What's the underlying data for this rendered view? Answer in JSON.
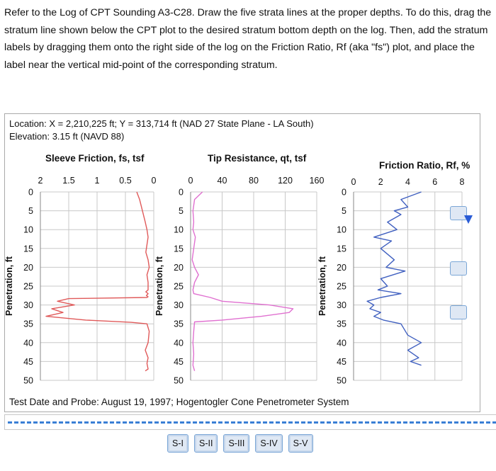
{
  "instructions": "Refer to the Log of CPT Sounding A3-C28.  Draw the five strata lines at the proper depths.  To do this, drag the stratum line shown below the CPT plot to the desired stratum bottom depth on the log.  Then, add the stratum labels by dragging them onto the right side of the log on the Friction Ratio, Rf (aka \"fs\") plot, and place the label near the vertical mid-point of the corresponding stratum.",
  "log": {
    "location": "Location:  X = 2,210,225 ft; Y = 313,714 ft (NAD 27 State Plane - LA South)",
    "elevation": "Elevation: 3.15 ft (NAVD 88)",
    "test_info": "Test Date and Probe:  August 19, 1997; Hogentogler Cone Penetrometer System",
    "depth_axis_label": "Penetration, ft",
    "depth_ticks": [
      "0",
      "5",
      "10",
      "15",
      "20",
      "25",
      "30",
      "35",
      "40",
      "45",
      "50"
    ],
    "plots": [
      {
        "title": "Sleeve Friction, fs, tsf",
        "x_ticks": [
          "2",
          "1.5",
          "1",
          "0.5",
          "0"
        ]
      },
      {
        "title": "Tip Resistance, qt, tsf",
        "x_ticks": [
          "0",
          "40",
          "80",
          "120",
          "160"
        ]
      },
      {
        "title": "Friction Ratio, Rf, %",
        "x_ticks": [
          "0",
          "2",
          "4",
          "6",
          "8"
        ]
      }
    ],
    "colors": {
      "fs": "#e05a5a",
      "qt": "#e070d0",
      "rf": "#4060c0",
      "stratum_line": "#3a7fd5"
    }
  },
  "strata_labels": [
    "S-I",
    "S-II",
    "S-III",
    "S-IV",
    "S-V"
  ],
  "chart_data": [
    {
      "type": "line",
      "title": "Sleeve Friction, fs, tsf",
      "xlim": [
        2,
        0
      ],
      "ylim": [
        0,
        50
      ],
      "x": [
        0.3,
        0.25,
        0.2,
        0.15,
        0.12,
        0.1,
        0.12,
        0.14,
        0.1,
        0.08,
        0.12,
        0.1,
        0.1,
        0.14,
        0.1,
        0.13,
        0.1,
        0.12,
        1.5,
        1.7,
        1.4,
        1.8,
        1.6,
        1.9,
        1.2,
        0.4,
        0.12,
        0.08,
        0.1,
        0.15,
        0.1,
        0.12,
        0.1,
        0.15
      ],
      "y": [
        0,
        2,
        5,
        8,
        10,
        12,
        14,
        16,
        18,
        20,
        22,
        24,
        26,
        26.5,
        27,
        27.5,
        27.8,
        28,
        28.3,
        29,
        30,
        31,
        32,
        33,
        34,
        34.6,
        35,
        37,
        40,
        42,
        44,
        45.5,
        47,
        47.5
      ]
    },
    {
      "type": "line",
      "title": "Tip Resistance, qt, tsf",
      "xlim": [
        0,
        160
      ],
      "ylim": [
        0,
        50
      ],
      "x": [
        15,
        5,
        3,
        4,
        3,
        6,
        4,
        2,
        5,
        10,
        5,
        3,
        4,
        25,
        40,
        100,
        130,
        125,
        90,
        40,
        5,
        4,
        3,
        4,
        3,
        5
      ],
      "y": [
        0,
        2,
        5,
        8,
        10,
        12,
        15,
        18,
        20,
        22,
        24,
        26,
        27,
        28,
        29,
        30,
        31,
        32,
        33,
        34,
        34.5,
        37,
        40,
        43,
        46,
        47.5
      ]
    },
    {
      "type": "line",
      "title": "Friction Ratio, Rf, %",
      "xlim": [
        0,
        8
      ],
      "ylim": [
        0,
        50
      ],
      "x": [
        5,
        3.5,
        4,
        3,
        3.5,
        2.5,
        3.2,
        1.5,
        2.8,
        2,
        3,
        2.4,
        3.8,
        2,
        2.5,
        1.8,
        3.5,
        2,
        1,
        1.5,
        1.2,
        2,
        1.5,
        2.2,
        3.5,
        4,
        5,
        4,
        4.8,
        4.2,
        5
      ],
      "y": [
        0,
        2,
        4,
        5,
        6,
        8,
        10,
        12,
        13,
        15,
        18,
        20,
        21,
        23,
        25,
        26,
        27,
        28,
        29,
        30,
        31,
        32,
        33,
        34,
        35,
        38,
        40,
        42,
        44,
        45,
        46
      ]
    }
  ]
}
